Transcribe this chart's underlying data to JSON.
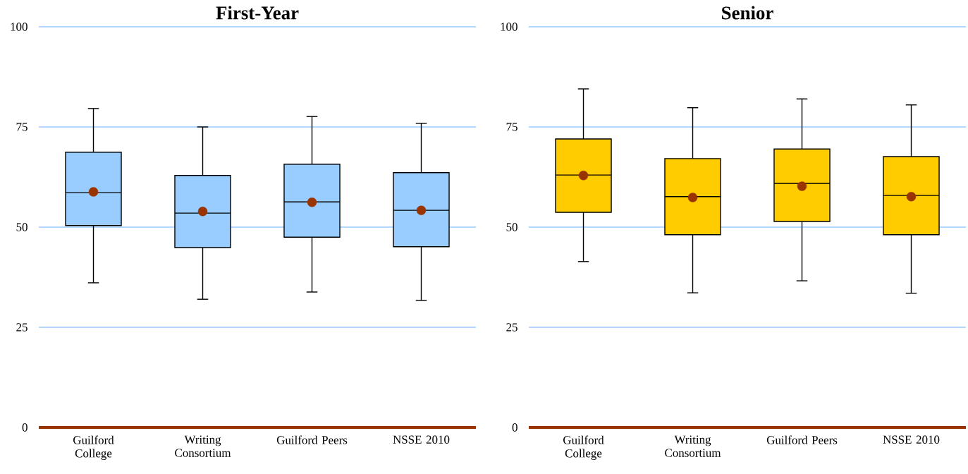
{
  "chart_data": [
    {
      "type": "box",
      "title": "First-Year",
      "categories": [
        "Guilford College",
        "Writing Consortium",
        "Guilford Peers",
        "NSSE 2010"
      ],
      "ylim": [
        0,
        100
      ],
      "yticks": [
        0,
        25,
        50,
        75,
        100
      ],
      "grid": "y",
      "marker": "circle",
      "series": [
        {
          "color": "#99ccff",
          "boxes": [
            {
              "low": 36.1,
              "q1": 50.4,
              "median": 58.6,
              "q3": 68.7,
              "high": 79.6,
              "mean": 58.8
            },
            {
              "low": 32.0,
              "q1": 44.9,
              "median": 53.5,
              "q3": 62.9,
              "high": 75.0,
              "mean": 53.9
            },
            {
              "low": 33.8,
              "q1": 47.5,
              "median": 56.3,
              "q3": 65.7,
              "high": 77.6,
              "mean": 56.2
            },
            {
              "low": 31.7,
              "q1": 45.1,
              "median": 54.2,
              "q3": 63.6,
              "high": 75.9,
              "mean": 54.2
            }
          ]
        }
      ]
    },
    {
      "type": "box",
      "title": "Senior",
      "categories": [
        "Guilford College",
        "Writing Consortium",
        "Guilford Peers",
        "NSSE 2010"
      ],
      "ylim": [
        0,
        100
      ],
      "yticks": [
        0,
        25,
        50,
        75,
        100
      ],
      "grid": "y",
      "marker": "circle",
      "series": [
        {
          "color": "#ffcc00",
          "boxes": [
            {
              "low": 41.4,
              "q1": 53.7,
              "median": 63.0,
              "q3": 72.0,
              "high": 84.5,
              "mean": 62.9
            },
            {
              "low": 33.6,
              "q1": 48.1,
              "median": 57.6,
              "q3": 67.1,
              "high": 79.8,
              "mean": 57.4
            },
            {
              "low": 36.6,
              "q1": 51.4,
              "median": 60.9,
              "q3": 69.5,
              "high": 82.0,
              "mean": 60.2
            },
            {
              "low": 33.5,
              "q1": 48.1,
              "median": 57.9,
              "q3": 67.6,
              "high": 80.5,
              "mean": 57.6
            }
          ]
        }
      ]
    }
  ]
}
